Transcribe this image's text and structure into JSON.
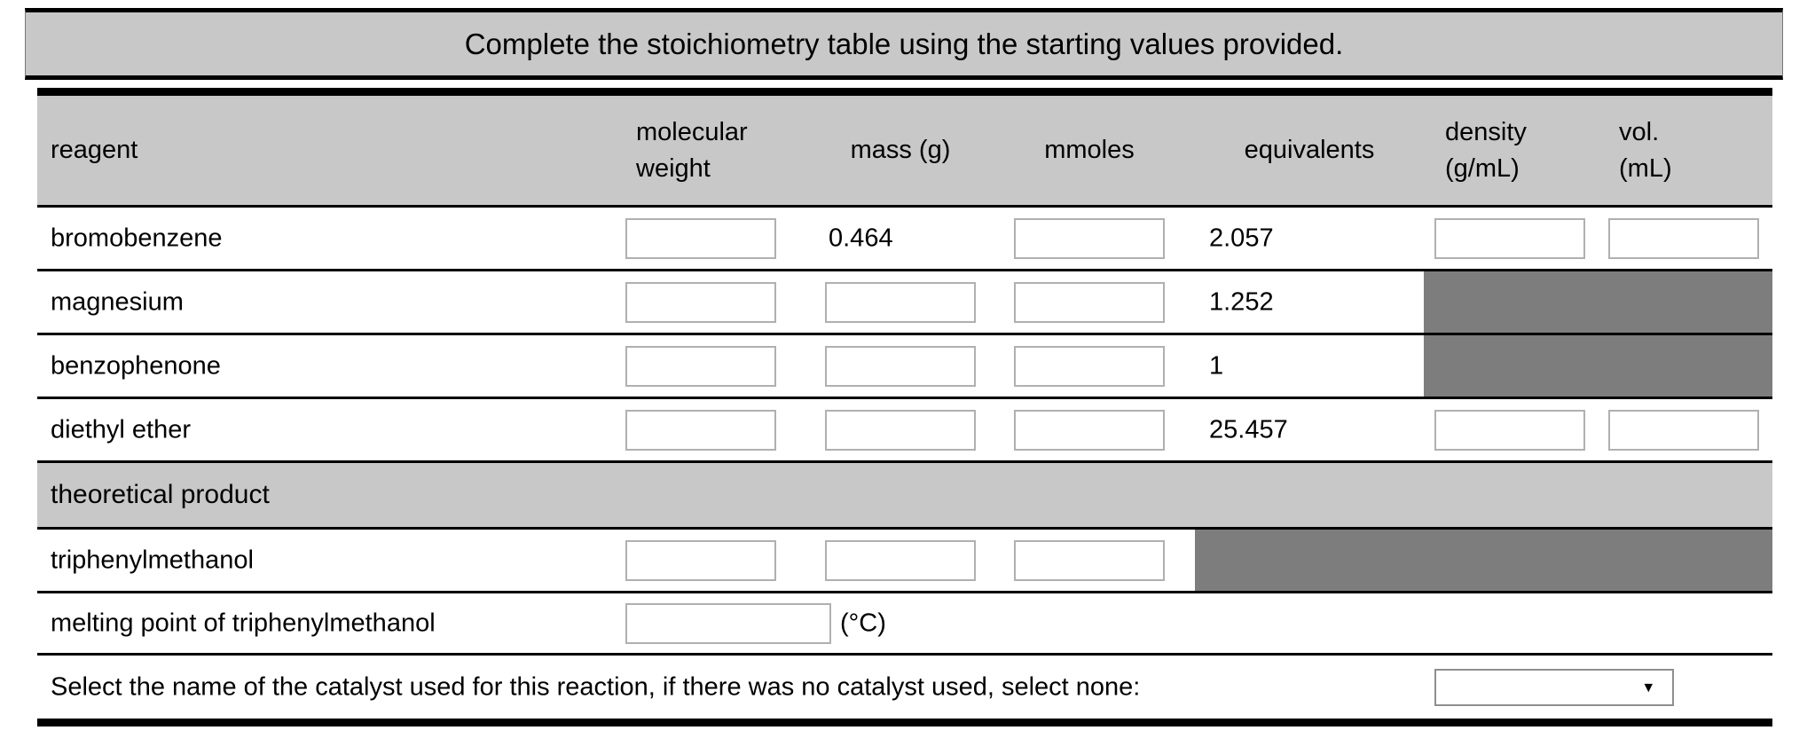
{
  "title": "Complete the stoichiometry table using the starting values provided.",
  "table": {
    "headers": {
      "reagent": "reagent",
      "molecular_weight": "molecular weight",
      "mass": "mass (g)",
      "mmoles": "mmoles",
      "equivalents": "equivalents",
      "density": "density (g/mL)",
      "volume": "vol. (mL)"
    },
    "rows": [
      {
        "name": "bromobenzene",
        "mass": "0.464",
        "equivalents": "2.057"
      },
      {
        "name": "magnesium",
        "equivalents": "1.252"
      },
      {
        "name": "benzophenone",
        "equivalents": "1"
      },
      {
        "name": "diethyl ether",
        "equivalents": "25.457"
      }
    ],
    "section_header": "theoretical product",
    "product_row": {
      "name": "triphenylmethanol"
    },
    "melting_point": {
      "label": "melting point of triphenylmethanol",
      "value": "",
      "unit": "(°C)"
    },
    "catalyst": {
      "label": "Select the name of the catalyst used for this reaction, if there was no catalyst used, select none:",
      "selected": "",
      "dropdown_icon": "▾"
    }
  },
  "colors": {
    "band_gray": "#c8c8c8",
    "disabled_cell_gray": "#7d7d7d",
    "input_border": "#b0b0b0",
    "line_black": "#000000"
  }
}
